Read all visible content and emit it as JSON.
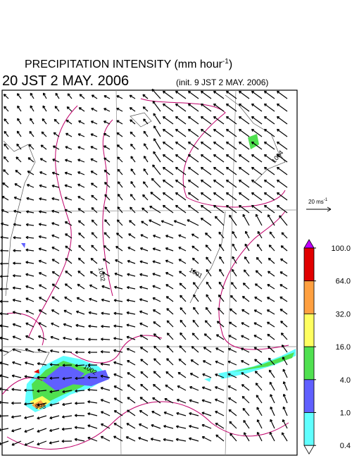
{
  "header": {
    "title": "PRECIPITATION INTENSITY (mm hour",
    "title_exponent": "-1",
    "title_close": ")",
    "valid_time": "20 JST 2 MAY. 2006",
    "init_time": "(init. 9 JST 2 MAY. 2006)"
  },
  "reference_vector": {
    "label": "20 ms",
    "exponent": "-1"
  },
  "colorbar": {
    "over_color": "#c000ff",
    "under_color": "#ffffff",
    "colors": [
      "#e00000",
      "#ffa040",
      "#ffff60",
      "#50e050",
      "#6060ff",
      "#60ffff"
    ],
    "ticks": [
      {
        "value": 100,
        "label": "100.0"
      },
      {
        "value": 64,
        "label": "64.0"
      },
      {
        "value": 32,
        "label": "32.0"
      },
      {
        "value": 16,
        "label": "16.0"
      },
      {
        "value": 4,
        "label": "4.0"
      },
      {
        "value": 1,
        "label": "1.0"
      },
      {
        "value": 0.4,
        "label": "0.4"
      }
    ]
  },
  "contour_labels": [
    "1002",
    "1001",
    "1002",
    "998",
    "1004"
  ]
}
